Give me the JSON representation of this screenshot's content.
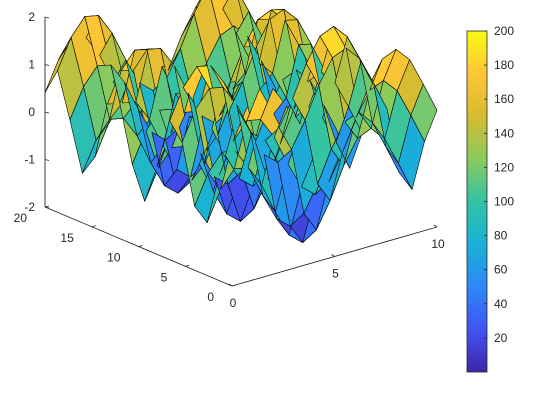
{
  "chart_data": {
    "type": "surface",
    "title": "",
    "xlabel": "",
    "ylabel": "",
    "zlabel": "",
    "x_range": [
      0,
      10
    ],
    "y_range": [
      0,
      20
    ],
    "zlim": [
      -2,
      2
    ],
    "x_ticks": [
      0,
      5,
      10
    ],
    "y_ticks": [
      0,
      5,
      10,
      15,
      20
    ],
    "z_ticks": [
      -2,
      -1,
      0,
      1,
      2
    ],
    "grid_size": [
      16,
      16
    ],
    "surface": "z = sin(x) + cos(y), z-range approx -2 to 2",
    "color_data_range": [
      0,
      200
    ],
    "colormap": "parula",
    "colorbar": {
      "position": "right",
      "ticks": [
        20,
        40,
        60,
        80,
        100,
        120,
        140,
        160,
        180,
        200
      ],
      "colors": [
        "#3e26a8",
        "#4154f5",
        "#2e87f7",
        "#19b2d6",
        "#33c3a4",
        "#89cb5c",
        "#d6bb30",
        "#fec636",
        "#f9fb15"
      ]
    },
    "grid": false,
    "edge_color": "#000000"
  }
}
